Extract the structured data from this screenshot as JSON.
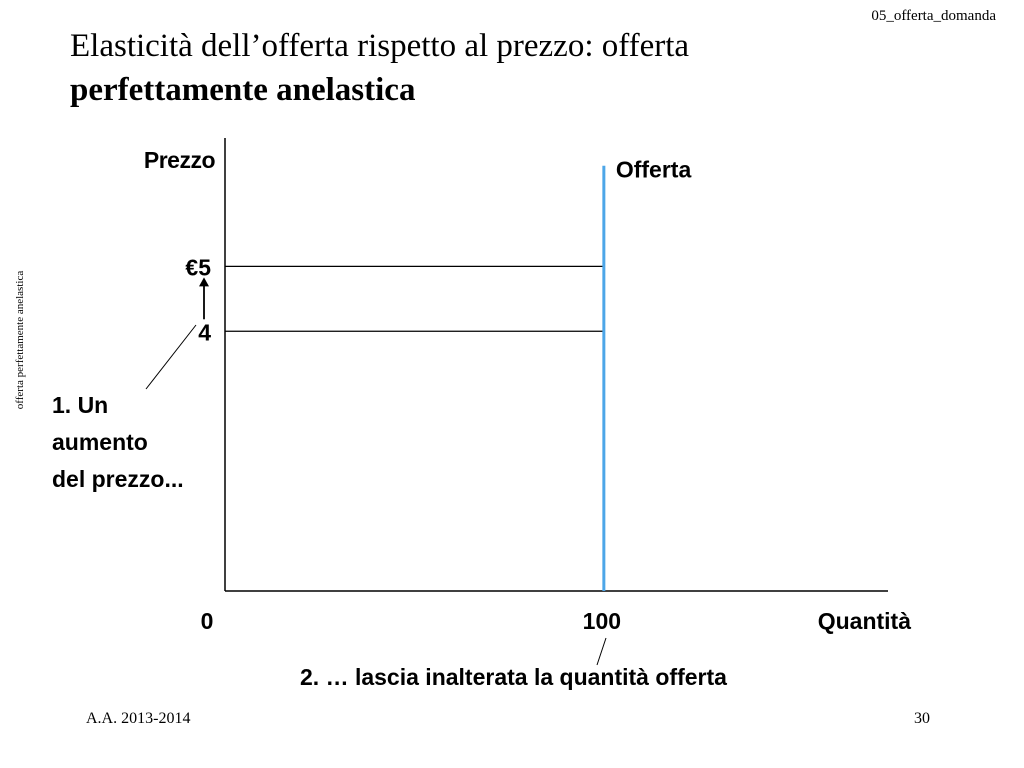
{
  "header_tag": "05_offerta_domanda",
  "title": {
    "line1": "Elasticità dell’offerta rispetto al prezzo: offerta",
    "line2": "perfettamente anelastica"
  },
  "side_label": "offerta perfettamente anelastica",
  "footer": {
    "left": "A.A. 2013-2014",
    "right": "30"
  },
  "chart_data": {
    "type": "line",
    "ylabel": "Prezzo",
    "xlabel": "Quantità",
    "series": [
      {
        "name": "Offerta",
        "x": [
          100,
          100
        ],
        "y": [
          0,
          6.55
        ],
        "color": "#4da6e8"
      }
    ],
    "reference_lines": [
      {
        "price": 5,
        "quantity": 100,
        "label": "€5"
      },
      {
        "price": 4,
        "quantity": 100,
        "label": "4"
      }
    ],
    "x_ticks": [
      {
        "value": 0,
        "label": "0"
      },
      {
        "value": 100,
        "label": "100"
      }
    ],
    "xlim": [
      0,
      175
    ],
    "ylim": [
      0,
      7.1
    ],
    "annotations": {
      "price_increase": {
        "lines": [
          "1. Un",
          "aumento",
          "del prezzo..."
        ]
      },
      "quantity_unchanged": {
        "text": "2. … lascia inalterata la quantità offerta"
      }
    },
    "grid": false
  }
}
